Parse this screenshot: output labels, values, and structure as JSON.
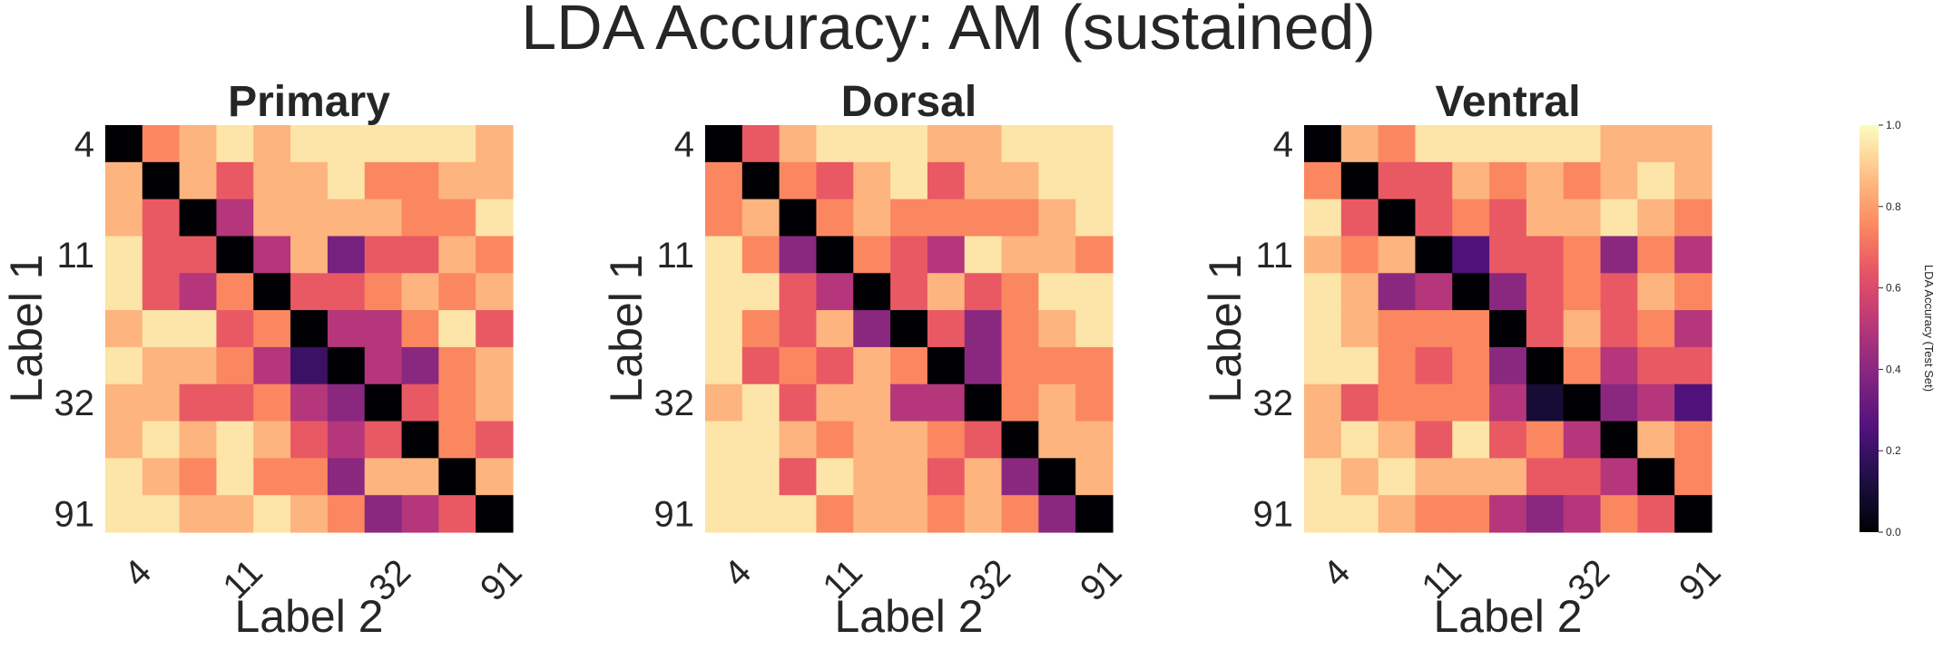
{
  "figure": {
    "title": "LDA Accuracy: AM (sustained)"
  },
  "chart_data": [
    {
      "type": "heatmap",
      "title": "Primary",
      "xlabel": "Label 2",
      "ylabel": "Label 1",
      "xticklabels": [
        "4",
        "11",
        "32",
        "91"
      ],
      "yticklabels": [
        "4",
        "11",
        "32",
        "91"
      ],
      "tick_rows": [
        0,
        3,
        7,
        10
      ],
      "colormap": "magma",
      "vmin": 0.0,
      "vmax": 1.0,
      "values": [
        [
          0.0,
          0.75,
          0.85,
          0.95,
          0.85,
          0.95,
          0.95,
          0.95,
          0.95,
          0.95,
          0.85
        ],
        [
          0.85,
          0.0,
          0.85,
          0.65,
          0.85,
          0.85,
          0.95,
          0.75,
          0.75,
          0.85,
          0.85
        ],
        [
          0.85,
          0.65,
          0.0,
          0.5,
          0.85,
          0.85,
          0.85,
          0.85,
          0.75,
          0.75,
          0.95
        ],
        [
          0.95,
          0.65,
          0.65,
          0.0,
          0.5,
          0.85,
          0.35,
          0.65,
          0.65,
          0.85,
          0.75
        ],
        [
          0.95,
          0.65,
          0.5,
          0.75,
          0.0,
          0.65,
          0.65,
          0.75,
          0.85,
          0.75,
          0.85
        ],
        [
          0.85,
          0.95,
          0.95,
          0.65,
          0.75,
          0.0,
          0.5,
          0.5,
          0.75,
          0.95,
          0.65
        ],
        [
          0.95,
          0.85,
          0.85,
          0.75,
          0.5,
          0.2,
          0.0,
          0.5,
          0.4,
          0.75,
          0.85
        ],
        [
          0.85,
          0.85,
          0.65,
          0.65,
          0.75,
          0.5,
          0.4,
          0.0,
          0.65,
          0.75,
          0.85
        ],
        [
          0.85,
          0.95,
          0.85,
          0.95,
          0.85,
          0.65,
          0.5,
          0.65,
          0.0,
          0.75,
          0.65
        ],
        [
          0.95,
          0.85,
          0.75,
          0.95,
          0.75,
          0.75,
          0.4,
          0.85,
          0.85,
          0.0,
          0.85
        ],
        [
          0.95,
          0.95,
          0.85,
          0.85,
          0.95,
          0.85,
          0.75,
          0.4,
          0.5,
          0.65,
          0.0
        ]
      ]
    },
    {
      "type": "heatmap",
      "title": "Dorsal",
      "xlabel": "Label 2",
      "ylabel": "Label 1",
      "xticklabels": [
        "4",
        "11",
        "32",
        "91"
      ],
      "yticklabels": [
        "4",
        "11",
        "32",
        "91"
      ],
      "tick_rows": [
        0,
        3,
        7,
        10
      ],
      "colormap": "magma",
      "vmin": 0.0,
      "vmax": 1.0,
      "values": [
        [
          0.0,
          0.65,
          0.85,
          0.95,
          0.95,
          0.95,
          0.85,
          0.85,
          0.95,
          0.95,
          0.95
        ],
        [
          0.75,
          0.0,
          0.75,
          0.65,
          0.85,
          0.95,
          0.65,
          0.85,
          0.85,
          0.95,
          0.95
        ],
        [
          0.75,
          0.85,
          0.0,
          0.75,
          0.85,
          0.75,
          0.75,
          0.75,
          0.75,
          0.85,
          0.95
        ],
        [
          0.95,
          0.75,
          0.4,
          0.0,
          0.75,
          0.65,
          0.5,
          0.95,
          0.85,
          0.85,
          0.75
        ],
        [
          0.95,
          0.95,
          0.65,
          0.5,
          0.0,
          0.65,
          0.85,
          0.65,
          0.75,
          0.95,
          0.95
        ],
        [
          0.95,
          0.75,
          0.65,
          0.85,
          0.4,
          0.0,
          0.65,
          0.4,
          0.75,
          0.85,
          0.95
        ],
        [
          0.95,
          0.65,
          0.75,
          0.65,
          0.85,
          0.75,
          0.0,
          0.4,
          0.75,
          0.75,
          0.75
        ],
        [
          0.85,
          0.95,
          0.65,
          0.85,
          0.85,
          0.5,
          0.5,
          0.0,
          0.75,
          0.85,
          0.75
        ],
        [
          0.95,
          0.95,
          0.85,
          0.75,
          0.85,
          0.85,
          0.75,
          0.65,
          0.0,
          0.85,
          0.85
        ],
        [
          0.95,
          0.95,
          0.65,
          0.95,
          0.85,
          0.85,
          0.65,
          0.85,
          0.4,
          0.0,
          0.85
        ],
        [
          0.95,
          0.95,
          0.95,
          0.75,
          0.85,
          0.85,
          0.75,
          0.85,
          0.75,
          0.4,
          0.0
        ]
      ]
    },
    {
      "type": "heatmap",
      "title": "Ventral",
      "xlabel": "Label 2",
      "ylabel": "Label 1",
      "xticklabels": [
        "4",
        "11",
        "32",
        "91"
      ],
      "yticklabels": [
        "4",
        "11",
        "32",
        "91"
      ],
      "tick_rows": [
        0,
        3,
        7,
        10
      ],
      "colormap": "magma",
      "vmin": 0.0,
      "vmax": 1.0,
      "values": [
        [
          0.0,
          0.85,
          0.75,
          0.95,
          0.95,
          0.95,
          0.95,
          0.95,
          0.85,
          0.85,
          0.85
        ],
        [
          0.75,
          0.0,
          0.65,
          0.65,
          0.85,
          0.75,
          0.85,
          0.75,
          0.85,
          0.95,
          0.85
        ],
        [
          0.95,
          0.65,
          0.0,
          0.65,
          0.75,
          0.65,
          0.85,
          0.85,
          0.95,
          0.85,
          0.75
        ],
        [
          0.85,
          0.75,
          0.85,
          0.0,
          0.25,
          0.65,
          0.65,
          0.75,
          0.4,
          0.75,
          0.5
        ],
        [
          0.95,
          0.85,
          0.4,
          0.5,
          0.0,
          0.4,
          0.65,
          0.75,
          0.65,
          0.85,
          0.75
        ],
        [
          0.95,
          0.85,
          0.75,
          0.75,
          0.75,
          0.0,
          0.65,
          0.85,
          0.65,
          0.75,
          0.5
        ],
        [
          0.95,
          0.95,
          0.75,
          0.65,
          0.75,
          0.4,
          0.0,
          0.75,
          0.5,
          0.65,
          0.65
        ],
        [
          0.85,
          0.65,
          0.75,
          0.75,
          0.75,
          0.5,
          0.1,
          0.0,
          0.4,
          0.5,
          0.25
        ],
        [
          0.85,
          0.95,
          0.85,
          0.65,
          0.95,
          0.65,
          0.75,
          0.5,
          0.0,
          0.85,
          0.75
        ],
        [
          0.95,
          0.85,
          0.95,
          0.85,
          0.85,
          0.85,
          0.65,
          0.65,
          0.5,
          0.0,
          0.75
        ],
        [
          0.95,
          0.95,
          0.85,
          0.75,
          0.75,
          0.5,
          0.4,
          0.5,
          0.75,
          0.65,
          0.0
        ]
      ]
    }
  ],
  "colorbar": {
    "label": "LDA Accuracy (Test Set)",
    "ticks": [
      0.0,
      0.2,
      0.4,
      0.6,
      0.8,
      1.0
    ],
    "ticklabels": [
      "0.0",
      "0.2",
      "0.4",
      "0.6",
      "0.8",
      "1.0"
    ]
  }
}
